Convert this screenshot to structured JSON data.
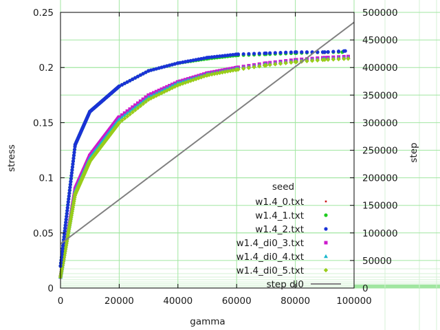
{
  "chart_data": {
    "type": "scatter",
    "xlabel": "gamma",
    "ylabel": "stress",
    "y2label": "step",
    "xlim": [
      0,
      100000
    ],
    "ylim": [
      0,
      0.25
    ],
    "y2lim": [
      0,
      500000
    ],
    "x_ticks": [
      "0",
      "20000",
      "40000",
      "60000",
      "80000",
      "100000"
    ],
    "y_ticks": [
      "0",
      "0.05",
      "0.1",
      "0.15",
      "0.2",
      "0.25"
    ],
    "y2_ticks": [
      "0",
      "50000",
      "100000",
      "150000",
      "200000",
      "250000",
      "300000",
      "350000",
      "400000",
      "450000",
      "500000"
    ],
    "grid": true,
    "legend_title": "seed",
    "legend_position": "bottom-right",
    "colors": {
      "grid_major": "#a0e6a0",
      "grid_minor": "#d4f2d4",
      "axis": "#000000"
    },
    "series": [
      {
        "name": "w1.4_0.txt",
        "axis": "y",
        "marker": "dot",
        "color": "#cc1a1a",
        "x": [
          0,
          5000,
          10000,
          20000,
          30000,
          40000,
          50000,
          60000,
          70000,
          80000,
          90000,
          96000
        ],
        "y": [
          0.02,
          0.13,
          0.16,
          0.183,
          0.197,
          0.204,
          0.208,
          0.211,
          0.212,
          0.213,
          0.213,
          0.214
        ]
      },
      {
        "name": "w1.4_1.txt",
        "axis": "y",
        "marker": "circle",
        "color": "#1fcc1f",
        "x": [
          0,
          5000,
          10000,
          20000,
          30000,
          40000,
          50000,
          60000,
          70000,
          80000,
          90000,
          96000
        ],
        "y": [
          0.02,
          0.13,
          0.16,
          0.183,
          0.197,
          0.204,
          0.208,
          0.211,
          0.212,
          0.213,
          0.214,
          0.214
        ]
      },
      {
        "name": "w1.4_2.txt",
        "axis": "y",
        "marker": "circle",
        "color": "#1a33d6",
        "x": [
          0,
          5000,
          10000,
          20000,
          30000,
          40000,
          50000,
          60000,
          70000,
          80000,
          90000,
          97000
        ],
        "y": [
          0.02,
          0.13,
          0.16,
          0.183,
          0.197,
          0.204,
          0.209,
          0.212,
          0.213,
          0.214,
          0.214,
          0.215
        ]
      },
      {
        "name": "w1.4_di0_3.txt",
        "axis": "y",
        "marker": "square",
        "color": "#cc1acc",
        "x": [
          0,
          5000,
          10000,
          20000,
          30000,
          40000,
          50000,
          60000,
          70000,
          80000,
          90000,
          98000
        ],
        "y": [
          0.01,
          0.09,
          0.12,
          0.155,
          0.175,
          0.187,
          0.195,
          0.2,
          0.204,
          0.207,
          0.209,
          0.21
        ]
      },
      {
        "name": "w1.4_di0_4.txt",
        "axis": "y",
        "marker": "triangle",
        "color": "#1ab8cc",
        "x": [
          0,
          5000,
          10000,
          20000,
          30000,
          40000,
          50000,
          60000,
          70000,
          80000,
          90000,
          98000
        ],
        "y": [
          0.01,
          0.088,
          0.118,
          0.153,
          0.173,
          0.186,
          0.194,
          0.199,
          0.203,
          0.206,
          0.208,
          0.209
        ]
      },
      {
        "name": "w1.4_di0_5.txt",
        "axis": "y",
        "marker": "diamond",
        "color": "#99cc1a",
        "x": [
          0,
          5000,
          10000,
          20000,
          30000,
          40000,
          50000,
          60000,
          70000,
          80000,
          90000,
          98000
        ],
        "y": [
          0.01,
          0.085,
          0.115,
          0.15,
          0.171,
          0.184,
          0.193,
          0.198,
          0.202,
          0.205,
          0.207,
          0.208
        ]
      },
      {
        "name": "step di0",
        "axis": "y2",
        "marker": "line",
        "color": "#808080",
        "x": [
          0,
          100000
        ],
        "y": [
          80000,
          482000
        ]
      }
    ]
  }
}
